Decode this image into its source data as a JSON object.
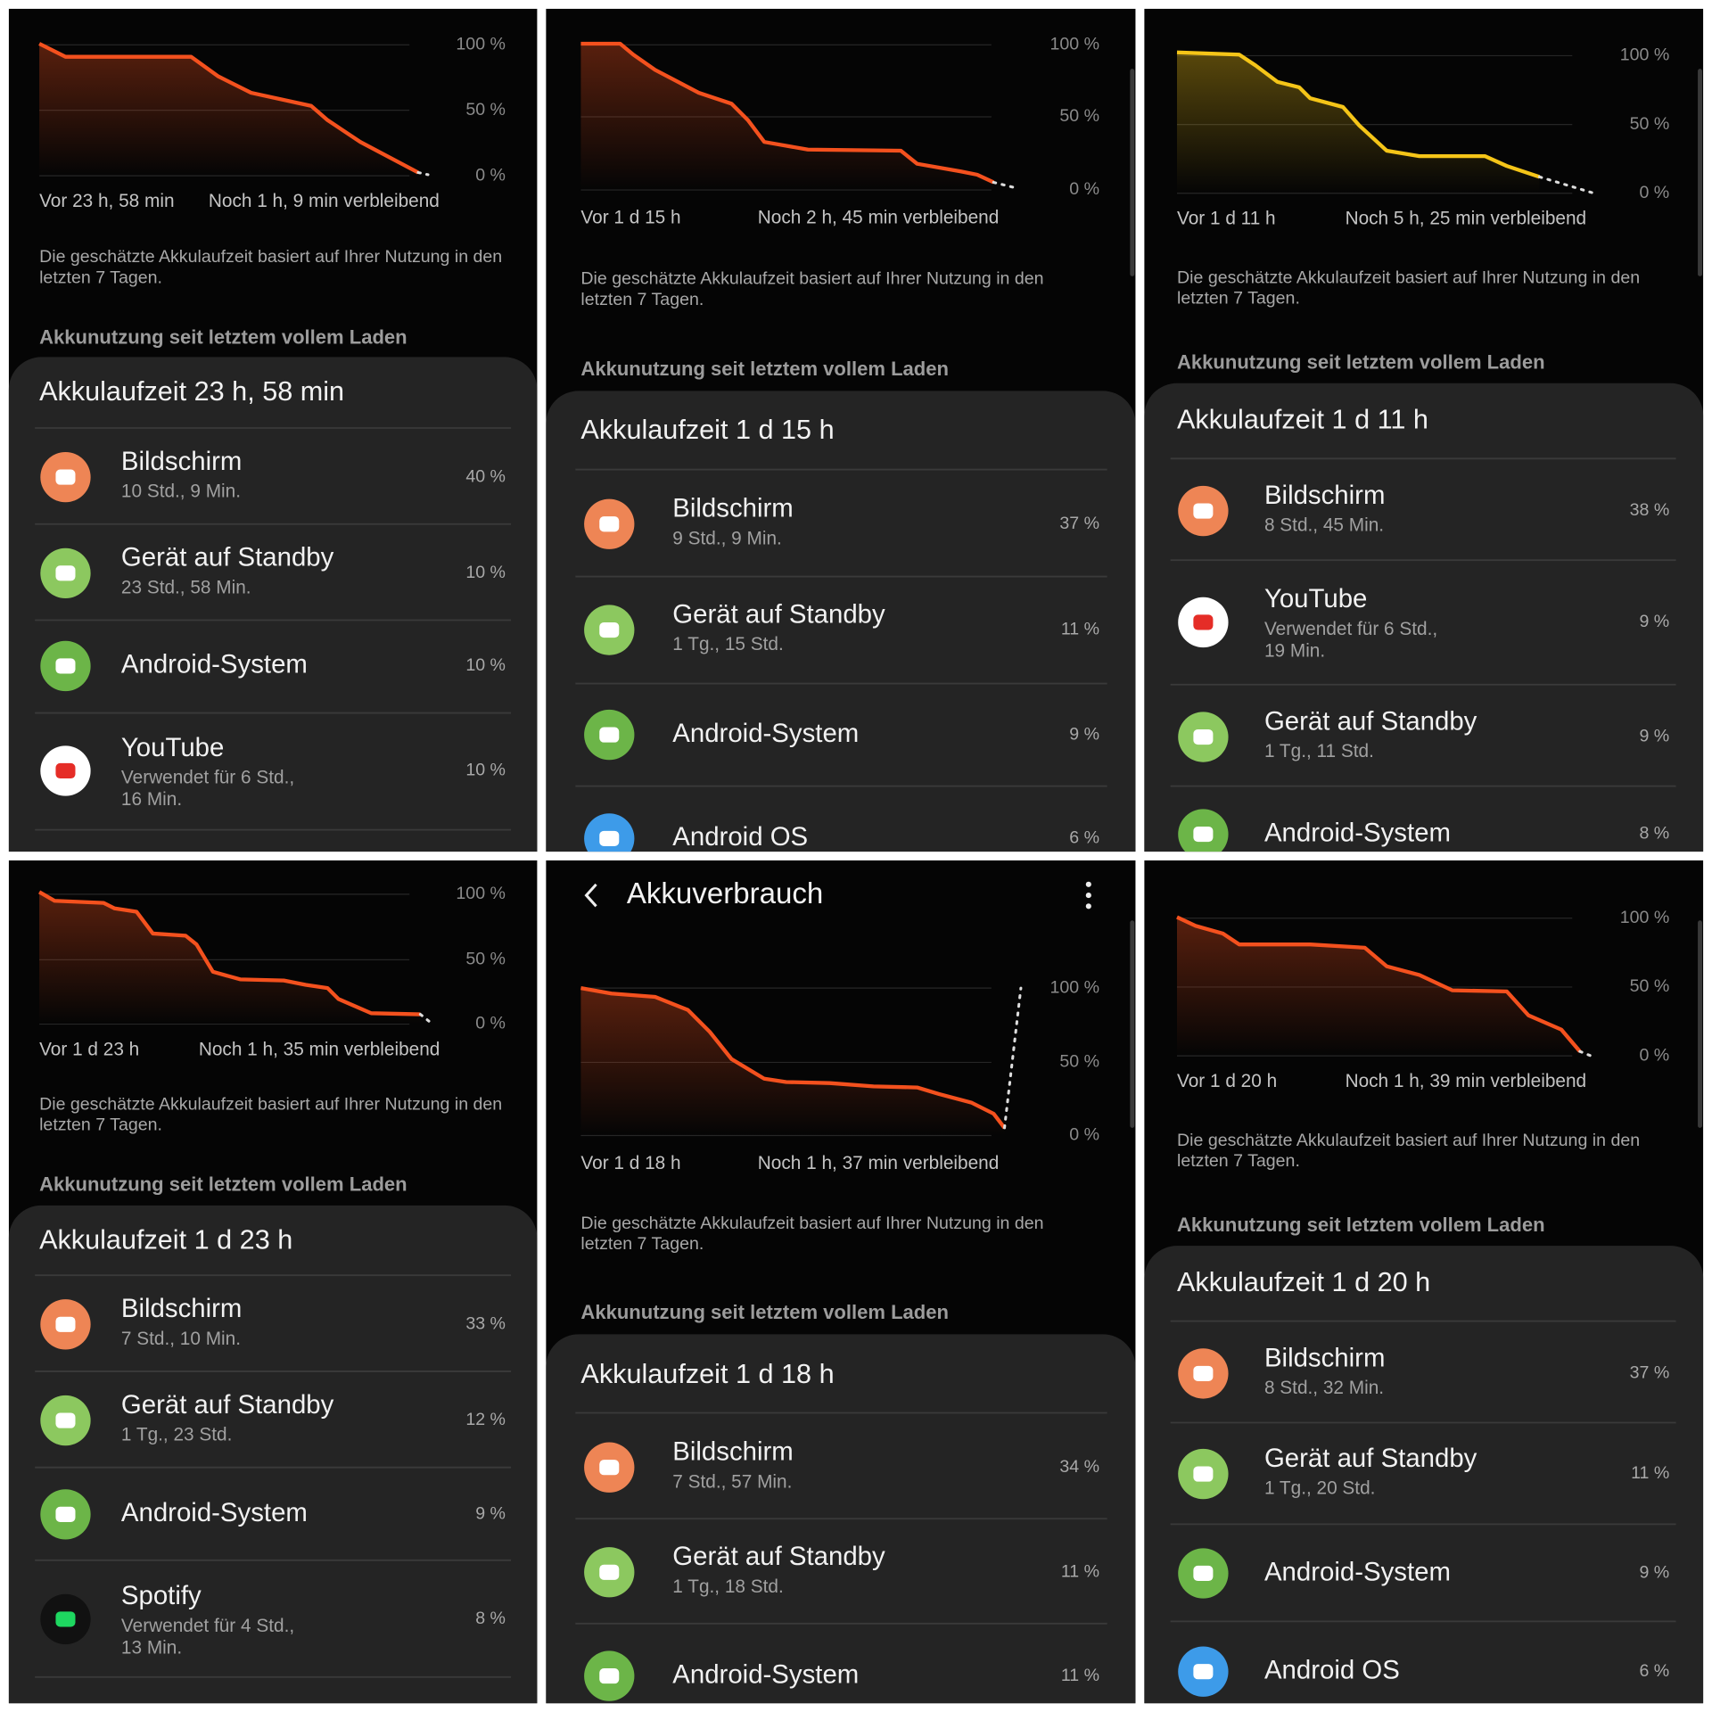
{
  "panels": [
    {
      "chart": {
        "y_labels": [
          "100 %",
          "50 %",
          "0 %"
        ],
        "since": "Vor 23 h, 58 min",
        "remaining": "Noch 1 h, 9 min verbleibend"
      },
      "note": [
        "Die geschätzte Akkulaufzeit basiert auf Ihrer Nutzung in den",
        "letzten 7 Tagen."
      ],
      "section": "Akkunutzung seit letztem vollem Laden",
      "card": {
        "title": "Akkulaufzeit 23 h, 58 min",
        "items": [
          {
            "name": "Bildschirm",
            "detail": [
              "10 Std., 9 Min."
            ],
            "percent": "40 %",
            "icon_color": "#ee8555"
          },
          {
            "name": "Gerät auf Standby",
            "detail": [
              "23 Std., 58 Min."
            ],
            "percent": "10 %",
            "icon_color": "#8cc85f"
          },
          {
            "name": "Android-System",
            "detail": [],
            "percent": "10 %",
            "icon_color": "#6cb548"
          },
          {
            "name": "YouTube",
            "detail": [
              "Verwendet für 6 Std.,",
              "16 Min."
            ],
            "percent": "10 %",
            "icon_color": "#ffffff",
            "glyph_color": "#e52d27"
          }
        ]
      }
    },
    {
      "chart": {
        "y_labels": [
          "100 %",
          "50 %",
          "0 %"
        ],
        "since": "Vor 1 d 15 h",
        "remaining": "Noch 2 h, 45 min verbleibend"
      },
      "note": [
        "Die geschätzte Akkulaufzeit basiert auf Ihrer Nutzung in den",
        "letzten 7 Tagen."
      ],
      "section": "Akkunutzung seit letztem vollem Laden",
      "card": {
        "title": "Akkulaufzeit 1 d 15 h",
        "items": [
          {
            "name": "Bildschirm",
            "detail": [
              "9 Std., 9 Min."
            ],
            "percent": "37 %",
            "icon_color": "#ee8555"
          },
          {
            "name": "Gerät auf Standby",
            "detail": [
              "1 Tg., 15 Std."
            ],
            "percent": "11 %",
            "icon_color": "#8cc85f"
          },
          {
            "name": "Android-System",
            "detail": [],
            "percent": "9 %",
            "icon_color": "#6cb548"
          },
          {
            "name": "Android OS",
            "detail": [],
            "percent": "6 %",
            "icon_color": "#3d9be9"
          }
        ]
      }
    },
    {
      "chart": {
        "y_labels": [
          "100 %",
          "50 %",
          "0 %"
        ],
        "since": "Vor 1 d 11 h",
        "remaining": "Noch 5 h, 25 min verbleibend"
      },
      "note": [
        "Die geschätzte Akkulaufzeit basiert auf Ihrer Nutzung in den",
        "letzten 7 Tagen."
      ],
      "section": "Akkunutzung seit letztem vollem Laden",
      "card": {
        "title": "Akkulaufzeit 1 d 11 h",
        "items": [
          {
            "name": "Bildschirm",
            "detail": [
              "8 Std., 45 Min."
            ],
            "percent": "38 %",
            "icon_color": "#ee8555"
          },
          {
            "name": "YouTube",
            "detail": [
              "Verwendet für 6 Std.,",
              "19 Min."
            ],
            "percent": "9 %",
            "icon_color": "#ffffff",
            "glyph_color": "#e52d27"
          },
          {
            "name": "Gerät auf Standby",
            "detail": [
              "1 Tg., 11 Std."
            ],
            "percent": "9 %",
            "icon_color": "#8cc85f"
          },
          {
            "name": "Android-System",
            "detail": [],
            "percent": "8 %",
            "icon_color": "#6cb548"
          }
        ]
      }
    },
    {
      "chart": {
        "y_labels": [
          "100 %",
          "50 %",
          "0 %"
        ],
        "since": "Vor 1 d 23 h",
        "remaining": "Noch 1 h, 35 min verbleibend"
      },
      "note": [
        "Die geschätzte Akkulaufzeit basiert auf Ihrer Nutzung in den",
        "letzten 7 Tagen."
      ],
      "section": "Akkunutzung seit letztem vollem Laden",
      "card": {
        "title": "Akkulaufzeit 1 d 23 h",
        "items": [
          {
            "name": "Bildschirm",
            "detail": [
              "7 Std., 10 Min."
            ],
            "percent": "33 %",
            "icon_color": "#ee8555"
          },
          {
            "name": "Gerät auf Standby",
            "detail": [
              "1 Tg., 23 Std."
            ],
            "percent": "12 %",
            "icon_color": "#8cc85f"
          },
          {
            "name": "Android-System",
            "detail": [],
            "percent": "9 %",
            "icon_color": "#6cb548"
          },
          {
            "name": "Spotify",
            "detail": [
              "Verwendet für 4 Std.,",
              "13 Min."
            ],
            "percent": "8 %",
            "icon_color": "#111111",
            "glyph_color": "#1ed760"
          }
        ]
      }
    },
    {
      "header": {
        "title": "Akkuverbrauch"
      },
      "chart": {
        "y_labels": [
          "100 %",
          "50 %",
          "0 %"
        ],
        "since": "Vor 1 d 18 h",
        "remaining": "Noch 1 h, 37 min verbleibend"
      },
      "note": [
        "Die geschätzte Akkulaufzeit basiert auf Ihrer Nutzung in den",
        "letzten 7 Tagen."
      ],
      "section": "Akkunutzung seit letztem vollem Laden",
      "card": {
        "title": "Akkulaufzeit 1 d 18 h",
        "items": [
          {
            "name": "Bildschirm",
            "detail": [
              "7 Std., 57 Min."
            ],
            "percent": "34 %",
            "icon_color": "#ee8555"
          },
          {
            "name": "Gerät auf Standby",
            "detail": [
              "1 Tg., 18 Std."
            ],
            "percent": "11 %",
            "icon_color": "#8cc85f"
          },
          {
            "name": "Android-System",
            "detail": [],
            "percent": "11 %",
            "icon_color": "#6cb548"
          }
        ]
      }
    },
    {
      "chart": {
        "y_labels": [
          "100 %",
          "50 %",
          "0 %"
        ],
        "since": "Vor 1 d 20 h",
        "remaining": "Noch 1 h, 39 min verbleibend"
      },
      "note": [
        "Die geschätzte Akkulaufzeit basiert auf Ihrer Nutzung in den",
        "letzten 7 Tagen."
      ],
      "section": "Akkunutzung seit letztem vollem Laden",
      "card": {
        "title": "Akkulaufzeit 1 d 20 h",
        "items": [
          {
            "name": "Bildschirm",
            "detail": [
              "8 Std., 32 Min."
            ],
            "percent": "37 %",
            "icon_color": "#ee8555"
          },
          {
            "name": "Gerät auf Standby",
            "detail": [
              "1 Tg., 20 Std."
            ],
            "percent": "11 %",
            "icon_color": "#8cc85f"
          },
          {
            "name": "Android-System",
            "detail": [],
            "percent": "9 %",
            "icon_color": "#6cb548"
          },
          {
            "name": "Android OS",
            "detail": [],
            "percent": "6 %",
            "icon_color": "#3d9be9"
          }
        ]
      }
    }
  ]
}
